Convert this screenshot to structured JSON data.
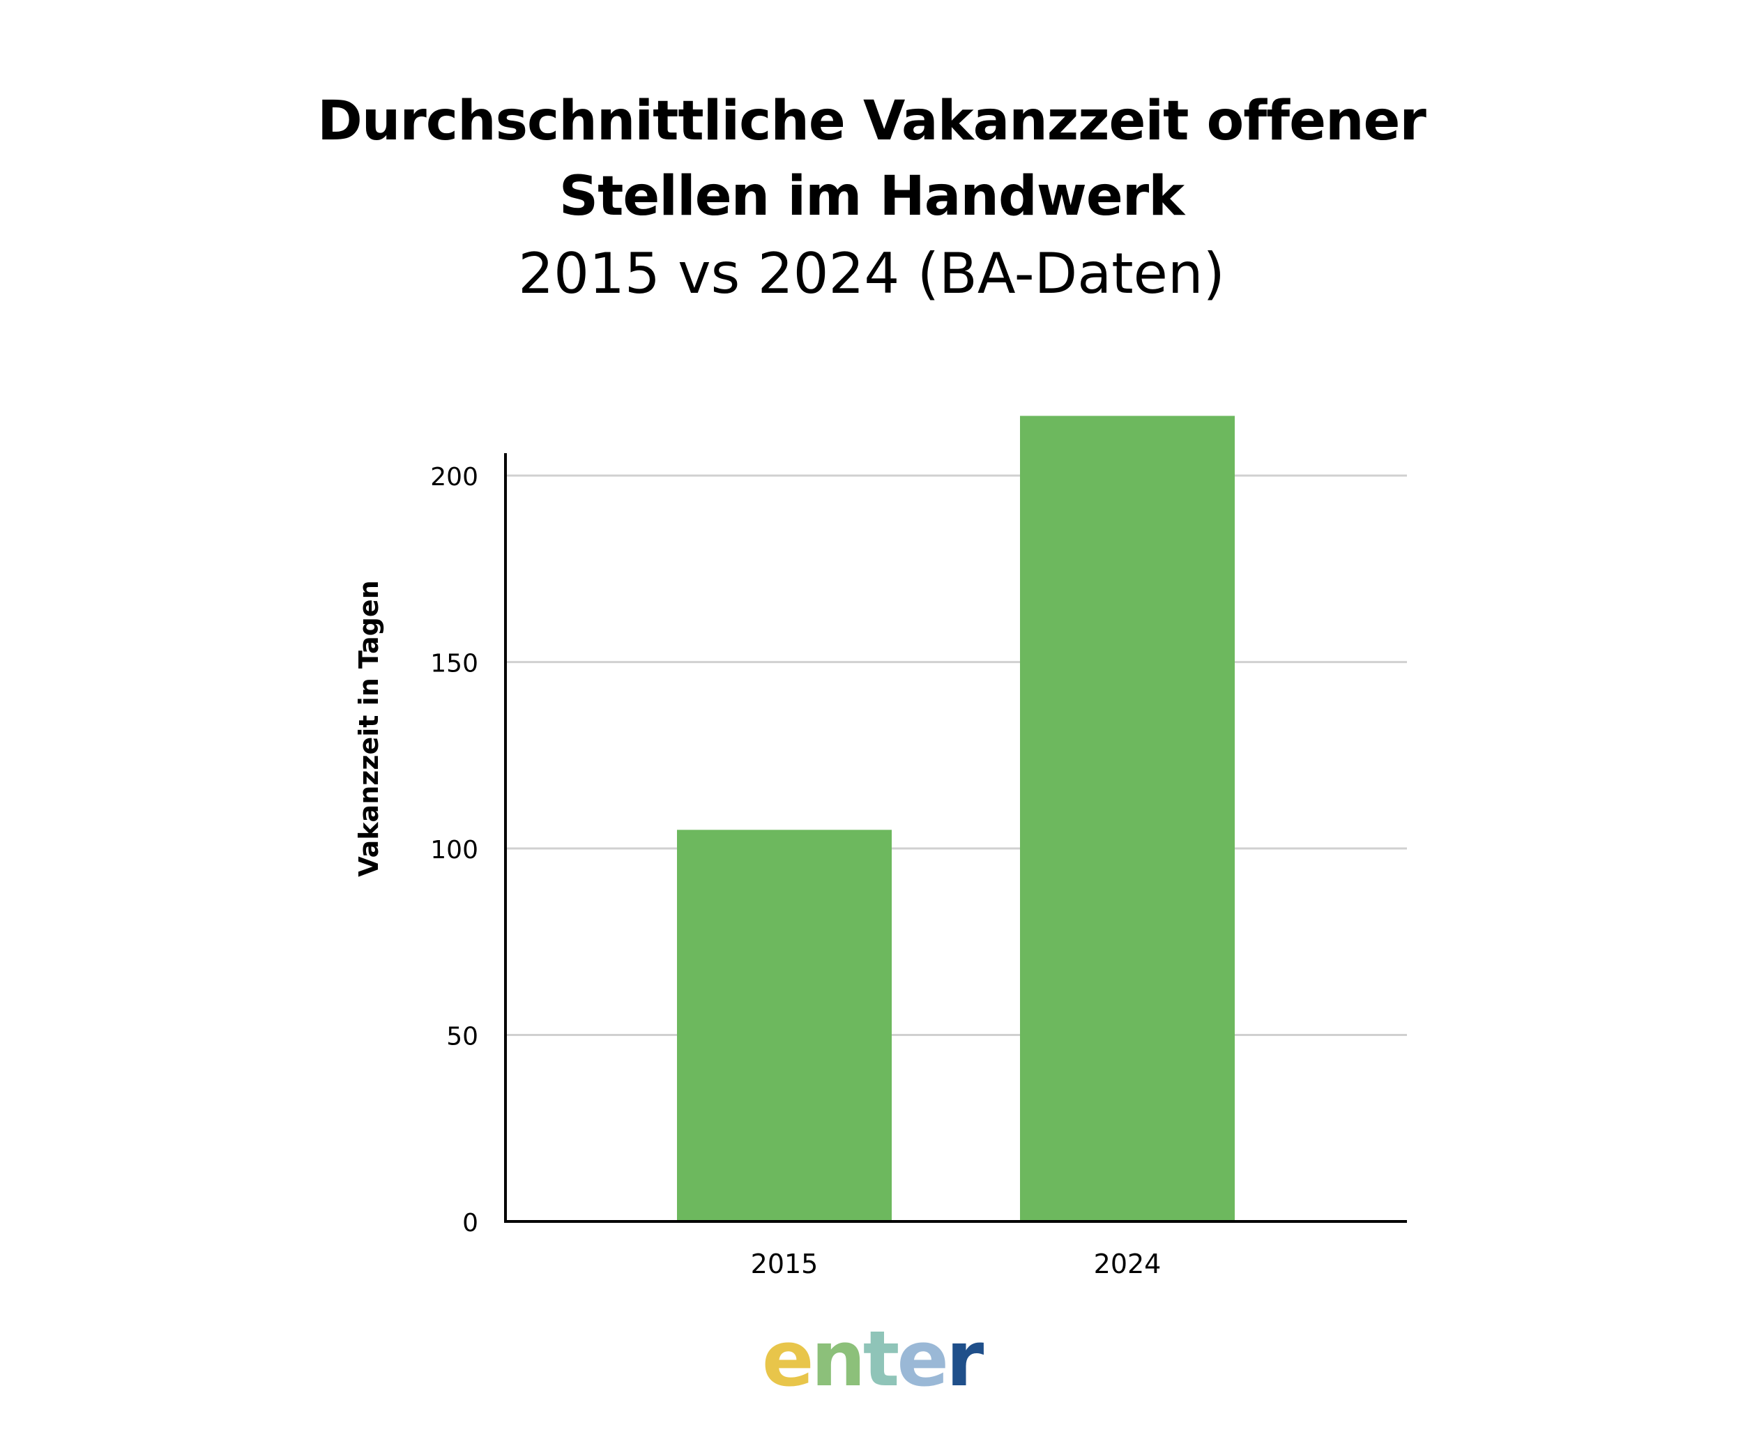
{
  "header": {
    "title_line1": "Durchschnittliche Vakanzzeit offener",
    "title_line2": "Stellen im Handwerk",
    "subtitle": "2015 vs 2024 (BA-Daten)"
  },
  "chart_data": {
    "type": "bar",
    "title": "Durchschnittliche Vakanzzeit offener Stellen im Handwerk",
    "subtitle": "2015 vs 2024 (BA-Daten)",
    "categories": [
      "2015",
      "2024"
    ],
    "values": [
      105,
      216
    ],
    "xlabel": "",
    "ylabel": "Vakanzzeit in Tagen",
    "ylim": [
      0,
      206
    ],
    "yticks": [
      0,
      50,
      100,
      150,
      200
    ],
    "grid": true,
    "bar_color": "#6db85e",
    "grid_color": "#d0d0d0",
    "axis_color": "#000000"
  },
  "logo": {
    "text": "enter",
    "letters": [
      "e",
      "n",
      "t",
      "e",
      "r"
    ],
    "colors": [
      "#e8c54a",
      "#8cc07a",
      "#8fc4b8",
      "#9ab8d6",
      "#1f4f8a"
    ]
  }
}
